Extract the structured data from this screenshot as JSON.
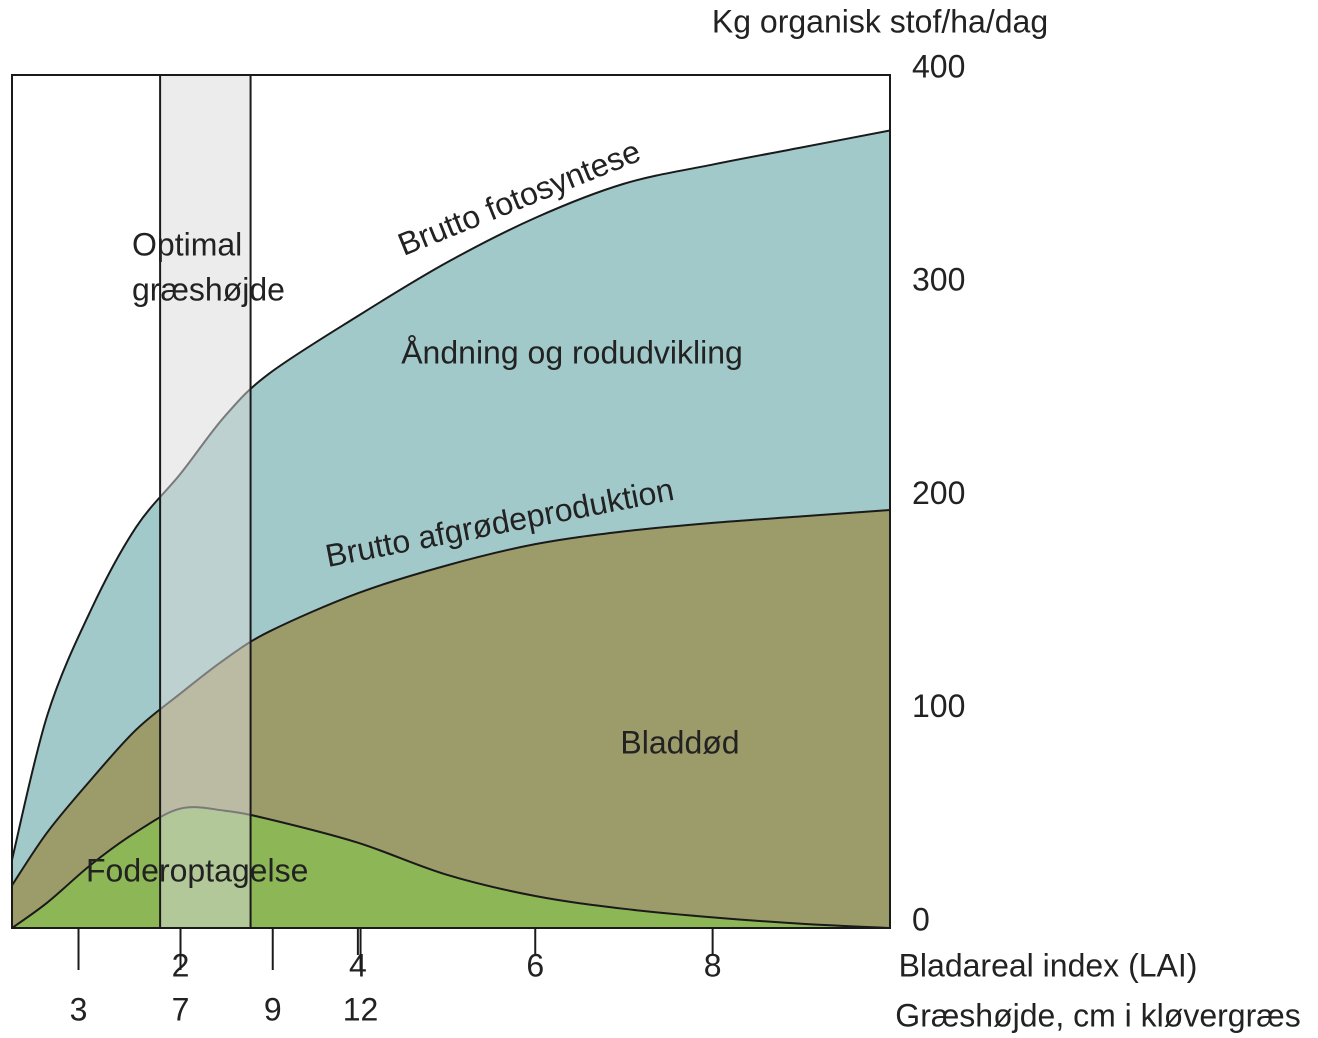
{
  "chart_data": {
    "type": "area",
    "ylabel": "Kg organisk stof/ha/dag",
    "xlabel": "Bladareal index (LAI)",
    "x2label": "Græshøjde, cm i kløvergræs",
    "annotations": [
      "Åndning og rodudvikling",
      "Bladdød"
    ],
    "band": {
      "label": [
        "Optimal",
        "græshøjde"
      ],
      "range": [
        1.77,
        2.79
      ],
      "color": "#d9d9d9"
    },
    "x": [
      0.1,
      0.5,
      1,
      1.5,
      2,
      2.5,
      3,
      4,
      5,
      6,
      7,
      8,
      9,
      10
    ],
    "series": [
      {
        "name": "Brutto fotosyntese",
        "color": "#a2c9c9",
        "values": [
          32,
          100,
          150,
          188,
          213,
          240,
          260,
          287,
          312,
          333,
          349,
          358,
          366,
          374
        ]
      },
      {
        "name": "Brutto afgrødeproduktion",
        "color": "#9c9b6a",
        "values": [
          20,
          45,
          70,
          93,
          110,
          126,
          139,
          157,
          170,
          180,
          186,
          190,
          193,
          196
        ]
      },
      {
        "name": "Foderoptagelse",
        "color": "#8db656",
        "values": [
          0,
          12,
          30,
          45,
          56,
          55,
          51,
          40,
          25,
          15,
          9,
          5,
          2,
          0
        ]
      }
    ],
    "xlim": [
      0.1,
      10
    ],
    "xticks": [
      2,
      4,
      6,
      8
    ],
    "x2ticks": [
      {
        "value": 0.85,
        "label": "3"
      },
      {
        "value": 2,
        "label": "7"
      },
      {
        "value": 3.04,
        "label": "9"
      },
      {
        "value": 4.03,
        "label": "12"
      }
    ],
    "ylim": [
      0,
      400
    ],
    "yticks": [
      0,
      100,
      200,
      300,
      400
    ]
  }
}
